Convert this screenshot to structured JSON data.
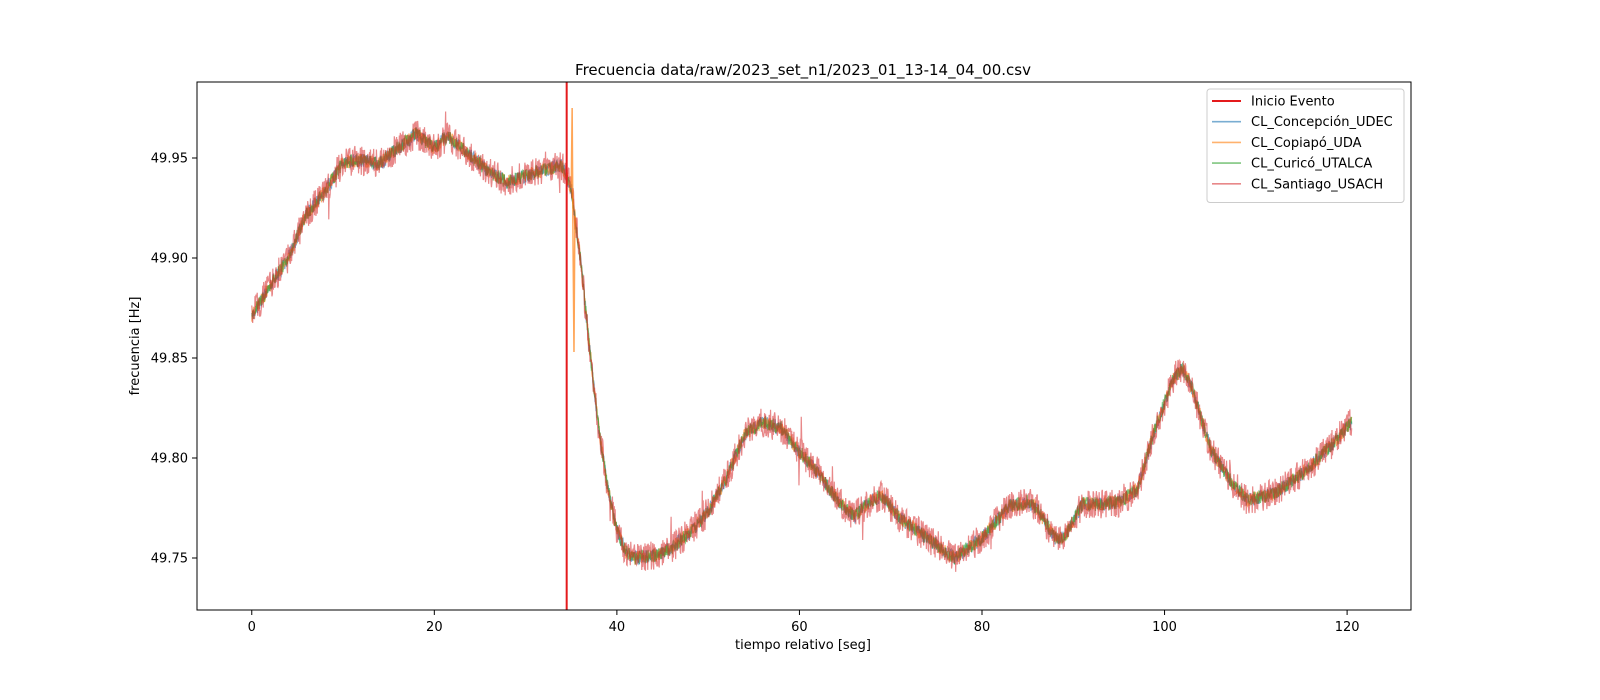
{
  "chart_data": {
    "type": "line",
    "title": "Frecuencia data/raw/2023_set_n1/2023_01_13-14_04_00.csv",
    "xlabel": "tiempo relativo [seg]",
    "ylabel": "frecuencia [Hz]",
    "xlim": [
      -6,
      127
    ],
    "ylim": [
      49.724,
      49.988
    ],
    "xticks": [
      0,
      20,
      40,
      60,
      80,
      100,
      120
    ],
    "yticks": [
      49.75,
      49.8,
      49.85,
      49.9,
      49.95
    ],
    "ytick_labels": [
      "49.75",
      "49.80",
      "49.85",
      "49.90",
      "49.95"
    ],
    "grid": false,
    "legend_position": "top-right",
    "event": {
      "name": "Inicio Evento",
      "x": 34.5,
      "color": "#e41a1c"
    },
    "trend_points": [
      [
        0,
        49.871
      ],
      [
        2,
        49.886
      ],
      [
        4,
        49.9
      ],
      [
        6,
        49.922
      ],
      [
        8,
        49.933
      ],
      [
        10,
        49.948
      ],
      [
        12,
        49.949
      ],
      [
        14,
        49.947
      ],
      [
        16,
        49.955
      ],
      [
        18,
        49.962
      ],
      [
        20,
        49.955
      ],
      [
        21.5,
        49.961
      ],
      [
        24,
        49.951
      ],
      [
        26,
        49.943
      ],
      [
        28,
        49.938
      ],
      [
        30,
        49.941
      ],
      [
        32,
        49.944
      ],
      [
        34,
        49.946
      ],
      [
        35,
        49.935
      ],
      [
        36,
        49.9
      ],
      [
        37,
        49.855
      ],
      [
        38,
        49.815
      ],
      [
        39,
        49.785
      ],
      [
        40,
        49.764
      ],
      [
        41,
        49.753
      ],
      [
        42,
        49.75
      ],
      [
        44,
        49.751
      ],
      [
        46,
        49.755
      ],
      [
        48,
        49.763
      ],
      [
        50,
        49.773
      ],
      [
        52,
        49.79
      ],
      [
        54,
        49.812
      ],
      [
        56,
        49.818
      ],
      [
        58,
        49.815
      ],
      [
        60,
        49.803
      ],
      [
        62,
        49.793
      ],
      [
        64,
        49.78
      ],
      [
        66,
        49.771
      ],
      [
        68,
        49.779
      ],
      [
        69,
        49.781
      ],
      [
        71,
        49.77
      ],
      [
        74,
        49.76
      ],
      [
        77,
        49.75
      ],
      [
        80,
        49.76
      ],
      [
        83,
        49.776
      ],
      [
        85,
        49.778
      ],
      [
        86,
        49.775
      ],
      [
        88,
        49.76
      ],
      [
        89,
        49.76
      ],
      [
        91,
        49.777
      ],
      [
        93,
        49.777
      ],
      [
        95,
        49.778
      ],
      [
        97,
        49.784
      ],
      [
        99,
        49.815
      ],
      [
        101,
        49.84
      ],
      [
        102,
        49.845
      ],
      [
        103,
        49.835
      ],
      [
        105,
        49.805
      ],
      [
        107,
        49.79
      ],
      [
        109,
        49.779
      ],
      [
        112,
        49.782
      ],
      [
        115,
        49.792
      ],
      [
        118,
        49.805
      ],
      [
        120.5,
        49.818
      ]
    ],
    "series": [
      {
        "name": "CL_Concepción_UDEC",
        "color": "#1f77b4",
        "alpha": 0.6,
        "noise": 0.0035
      },
      {
        "name": "CL_Copiapó_UDA",
        "color": "#ff7f0e",
        "alpha": 0.6,
        "noise": 0.0035
      },
      {
        "name": "CL_Curicó_UTALCA",
        "color": "#2ca02c",
        "alpha": 0.6,
        "noise": 0.0035
      },
      {
        "name": "CL_Santiago_USACH",
        "color": "#d62728",
        "alpha": 0.55,
        "noise": 0.0075
      }
    ]
  }
}
